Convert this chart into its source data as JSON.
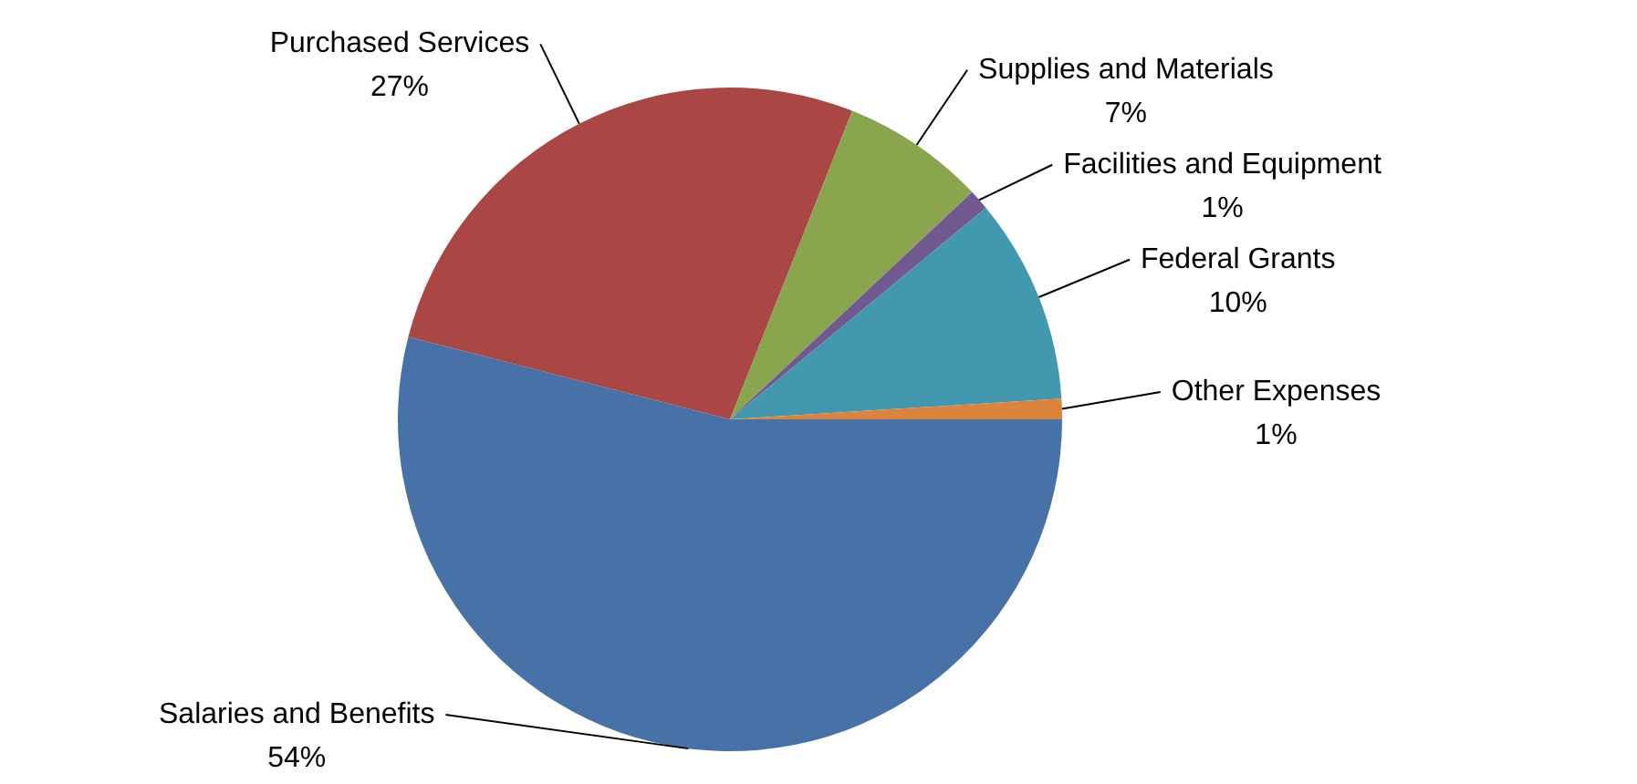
{
  "chart_data": {
    "type": "pie",
    "categories": [
      "Salaries and Benefits",
      "Purchased Services",
      "Supplies and Materials",
      "Facilities and Equipment",
      "Federal Grants",
      "Other Expenses"
    ],
    "values": [
      54,
      27,
      7,
      1,
      10,
      1
    ],
    "value_labels": [
      "54%",
      "27%",
      "7%",
      "1%",
      "10%",
      "1%"
    ],
    "colors": [
      "#4672a8",
      "#aa4643",
      "#89a54e",
      "#71588f",
      "#4198af",
      "#db843d"
    ],
    "legend": false
  }
}
